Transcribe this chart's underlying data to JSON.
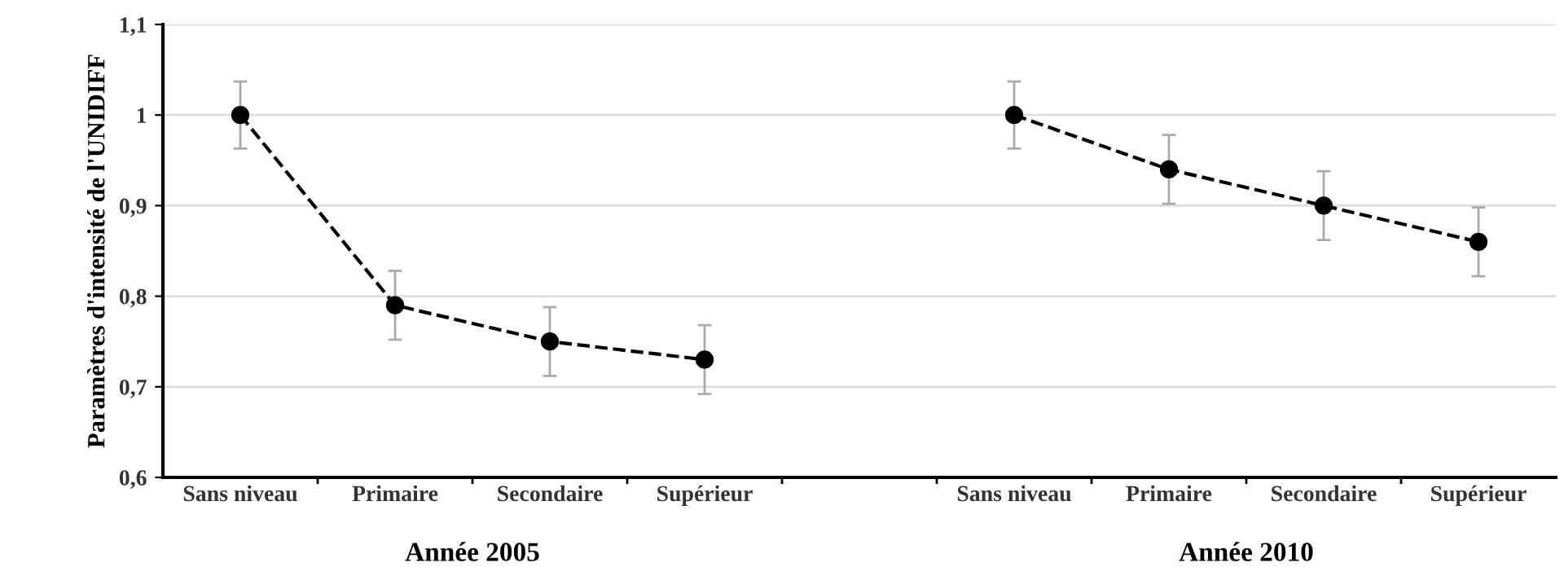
{
  "chart_data": {
    "type": "line",
    "ylabel": "Paramètres d'intensité de l'UNIDIFF",
    "categories": [
      "Sans niveau",
      "Primaire",
      "Secondaire",
      "Supérieur",
      null,
      "Sans niveau",
      "Primaire",
      "Secondaire",
      "Supérieur"
    ],
    "series": [
      {
        "color": "#000000",
        "values": [
          1.0,
          0.79,
          0.75,
          0.73,
          null,
          null,
          null,
          null,
          null
        ],
        "errors": [
          0.037,
          0.038,
          0.038,
          0.038,
          null,
          null,
          null,
          null,
          null
        ]
      },
      {
        "color": "#000000",
        "values": [
          null,
          null,
          null,
          null,
          null,
          1.0,
          0.94,
          0.9,
          0.86
        ],
        "errors": [
          null,
          null,
          null,
          null,
          null,
          0.037,
          0.038,
          0.038,
          0.038
        ]
      }
    ],
    "ylim": [
      0.6,
      1.1
    ],
    "yticks": [
      {
        "value": 0.6,
        "label": "0,6"
      },
      {
        "value": 0.7,
        "label": "0,7"
      },
      {
        "value": 0.8,
        "label": "0,8"
      },
      {
        "value": 0.9,
        "label": "0,9"
      },
      1,
      {
        "value": 1.1,
        "label": "1,1"
      }
    ],
    "annotations": [
      "Année 2005",
      "Année 2010"
    ],
    "grid": "y",
    "marker": "circle",
    "line_style": "dashed"
  }
}
